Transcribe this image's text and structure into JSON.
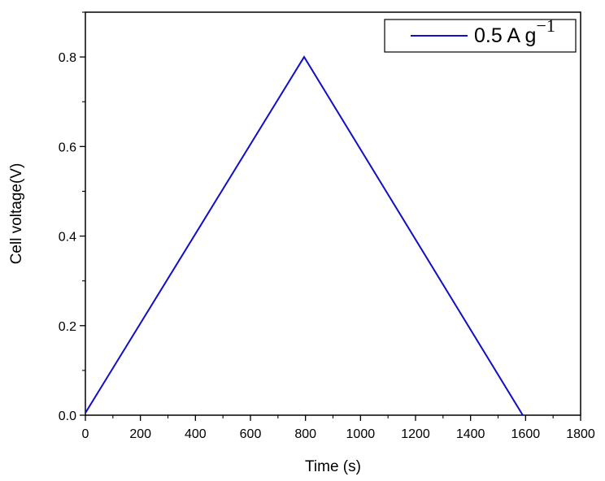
{
  "chart_data": {
    "type": "line",
    "title": "",
    "xlabel": "Time (s)",
    "ylabel": "Cell voltage(V)",
    "xlim": [
      0,
      1800
    ],
    "ylim": [
      0.0,
      0.9
    ],
    "x_ticks": [
      0,
      200,
      400,
      600,
      800,
      1000,
      1200,
      1400,
      1600,
      1800
    ],
    "x_tick_labels": [
      "0",
      "200",
      "400",
      "600",
      "800",
      "1000",
      "1200",
      "1400",
      "1600",
      "1800"
    ],
    "y_ticks": [
      0.0,
      0.2,
      0.4,
      0.6,
      0.8
    ],
    "y_tick_labels": [
      "0.0",
      "0.2",
      "0.4",
      "0.6",
      "0.8"
    ],
    "grid": false,
    "legend_position": "top-right",
    "series": [
      {
        "name": "0.5 A g",
        "name_superscript": "-1",
        "color": "#1010c8",
        "x": [
          0,
          795,
          1590
        ],
        "y": [
          0.005,
          0.8,
          0.0
        ]
      }
    ]
  }
}
